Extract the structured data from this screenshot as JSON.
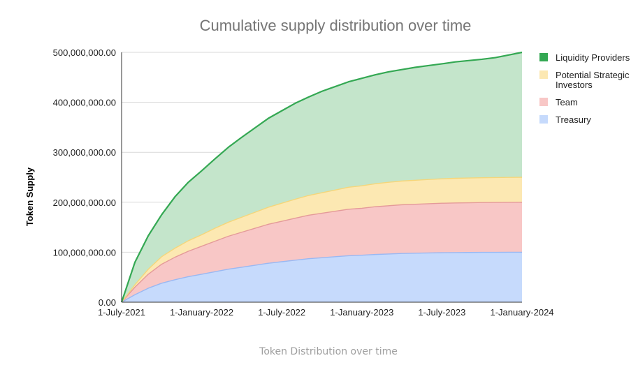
{
  "chart_data": {
    "type": "area",
    "stacked": true,
    "title": "Cumulative supply distribution over time",
    "xlabel": "Token Distribution over time",
    "ylabel": "Token Supply",
    "ylim": [
      0,
      500000000
    ],
    "yticks": [
      {
        "value": 0,
        "label": "0.00"
      },
      {
        "value": 100000000,
        "label": "100,000,000.00"
      },
      {
        "value": 200000000,
        "label": "200,000,000.00"
      },
      {
        "value": 300000000,
        "label": "300,000,000.00"
      },
      {
        "value": 400000000,
        "label": "400,000,000.00"
      },
      {
        "value": 500000000,
        "label": "500,000,000.00"
      }
    ],
    "xlim": [
      0,
      30
    ],
    "xticks": [
      {
        "value": 0,
        "label": "1-July-2021"
      },
      {
        "value": 6,
        "label": "1-January-2022"
      },
      {
        "value": 12,
        "label": "1-July-2022"
      },
      {
        "value": 18,
        "label": "1-January-2023"
      },
      {
        "value": 24,
        "label": "1-July-2023"
      },
      {
        "value": 30,
        "label": "1-January-2024"
      }
    ],
    "x": [
      0,
      1,
      2,
      3,
      4,
      5,
      6,
      7,
      8,
      9,
      10,
      11,
      12,
      13,
      14,
      15,
      16,
      17,
      18,
      19,
      20,
      21,
      22,
      23,
      24,
      25,
      26,
      27,
      28,
      29,
      30
    ],
    "x_unit": "months since 1-July-2021",
    "series": [
      {
        "name": "Treasury",
        "color": "#c6dafc",
        "line": "#9ab8f2",
        "values": [
          0,
          15000000,
          28000000,
          38000000,
          45000000,
          51000000,
          56000000,
          61000000,
          66000000,
          70000000,
          74000000,
          78000000,
          81000000,
          84000000,
          87000000,
          89000000,
          91000000,
          93000000,
          94000000,
          95500000,
          96500000,
          97500000,
          98000000,
          98500000,
          99000000,
          99300000,
          99500000,
          99700000,
          99800000,
          99900000,
          100000000
        ]
      },
      {
        "name": "Team",
        "color": "#f8c7c6",
        "line": "#e49a99",
        "values": [
          0,
          15000000,
          28000000,
          38000000,
          45000000,
          51000000,
          56000000,
          61000000,
          66000000,
          70000000,
          74000000,
          78000000,
          81000000,
          84000000,
          87000000,
          89000000,
          91000000,
          93000000,
          94000000,
          95500000,
          96500000,
          97500000,
          98000000,
          98500000,
          99000000,
          99300000,
          99500000,
          99700000,
          99800000,
          99900000,
          100000000
        ]
      },
      {
        "name": "Potential Strategic Investors",
        "color": "#fce8b2",
        "line": "#f5d67a",
        "values": [
          0,
          5000000,
          10000000,
          15000000,
          18000000,
          21000000,
          23000000,
          26000000,
          28000000,
          30000000,
          32000000,
          34000000,
          36000000,
          38000000,
          39500000,
          41000000,
          42500000,
          44000000,
          45000000,
          46000000,
          47000000,
          47500000,
          48000000,
          48500000,
          49000000,
          49300000,
          49500000,
          49700000,
          49800000,
          49900000,
          50000000
        ]
      },
      {
        "name": "Liquidity Providers",
        "color": "#c4e5cb",
        "line": "#34a853",
        "values": [
          0,
          45000000,
          67000000,
          84000000,
          103000000,
          117000000,
          128000000,
          139000000,
          150000000,
          160000000,
          169000000,
          178000000,
          185000000,
          192000000,
          197000000,
          203000000,
          207000000,
          211000000,
          215000000,
          218000000,
          221000000,
          223000000,
          226000000,
          228000000,
          230000000,
          233000000,
          235000000,
          237000000,
          240000000,
          245000000,
          250000000
        ]
      }
    ],
    "legend": {
      "position": "right",
      "entries": [
        {
          "label": "Liquidity Providers",
          "color": "#34a853"
        },
        {
          "label": "Potential Strategic\nInvestors",
          "color": "#fce8b2"
        },
        {
          "label": "Team",
          "color": "#f8c7c6"
        },
        {
          "label": "Treasury",
          "color": "#c6dafc"
        }
      ]
    },
    "grid": true
  }
}
